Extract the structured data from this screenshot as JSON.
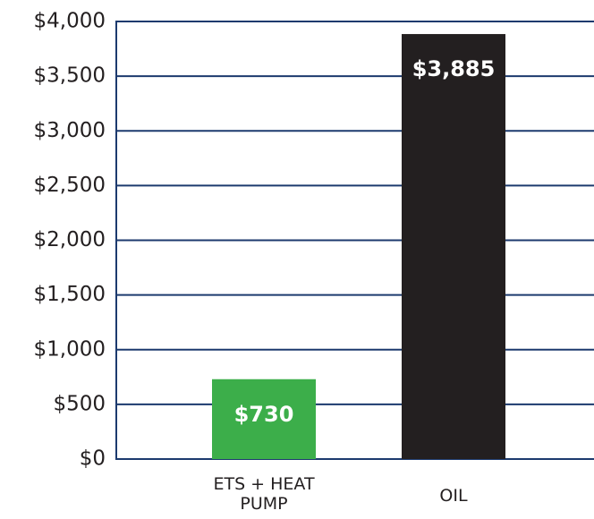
{
  "chart_data": {
    "type": "bar",
    "categories": [
      "ETS + HEAT PUMP",
      "OIL"
    ],
    "values": [
      730,
      3885
    ],
    "value_labels": [
      "$730",
      "$3,885"
    ],
    "colors": [
      "#3cae4a",
      "#231f20"
    ],
    "ylim": [
      0,
      4000
    ],
    "yticks": [
      {
        "value": 0,
        "label": "$0"
      },
      {
        "value": 500,
        "label": "$500"
      },
      {
        "value": 1000,
        "label": "$1,000"
      },
      {
        "value": 1500,
        "label": "$1,500"
      },
      {
        "value": 2000,
        "label": "$2,000"
      },
      {
        "value": 2500,
        "label": "$2,500"
      },
      {
        "value": 3000,
        "label": "$3,000"
      },
      {
        "value": 3500,
        "label": "$3,500"
      },
      {
        "value": 4000,
        "label": "$4,000"
      }
    ],
    "grid": true
  }
}
